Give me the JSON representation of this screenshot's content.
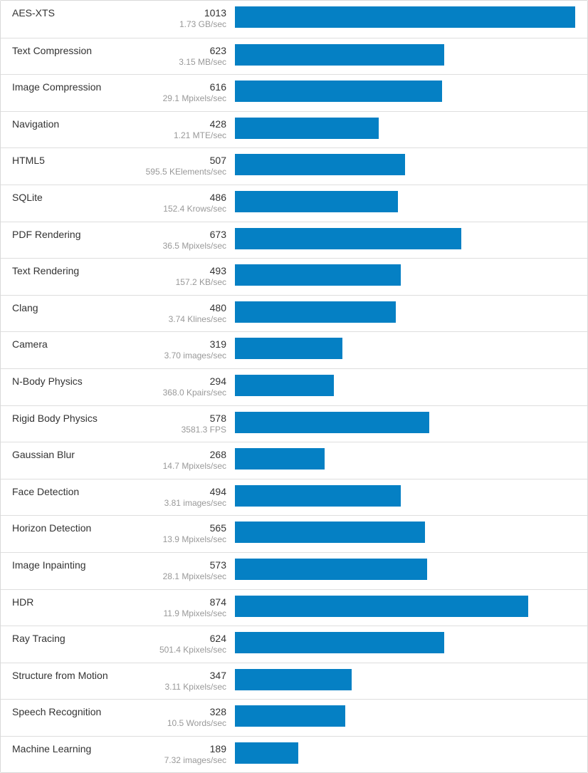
{
  "chart_data": {
    "type": "bar",
    "orientation": "horizontal",
    "bar_color": "#0580c4",
    "max_value": 1013,
    "categories": [
      "AES-XTS",
      "Text Compression",
      "Image Compression",
      "Navigation",
      "HTML5",
      "SQLite",
      "PDF Rendering",
      "Text Rendering",
      "Clang",
      "Camera",
      "N-Body Physics",
      "Rigid Body Physics",
      "Gaussian Blur",
      "Face Detection",
      "Horizon Detection",
      "Image Inpainting",
      "HDR",
      "Ray Tracing",
      "Structure from Motion",
      "Speech Recognition",
      "Machine Learning"
    ],
    "values": [
      1013,
      623,
      616,
      428,
      507,
      486,
      673,
      493,
      480,
      319,
      294,
      578,
      268,
      494,
      565,
      573,
      874,
      624,
      347,
      328,
      189
    ],
    "rates": [
      "1.73 GB/sec",
      "3.15 MB/sec",
      "29.1 Mpixels/sec",
      "1.21 MTE/sec",
      "595.5 KElements/sec",
      "152.4 Krows/sec",
      "36.5 Mpixels/sec",
      "157.2 KB/sec",
      "3.74 Klines/sec",
      "3.70 images/sec",
      "368.0 Kpairs/sec",
      "3581.3 FPS",
      "14.7 Mpixels/sec",
      "3.81 images/sec",
      "13.9 Mpixels/sec",
      "28.1 Mpixels/sec",
      "11.9 Mpixels/sec",
      "501.4 Kpixels/sec",
      "3.11 Kpixels/sec",
      "10.5 Words/sec",
      "7.32 images/sec"
    ]
  }
}
